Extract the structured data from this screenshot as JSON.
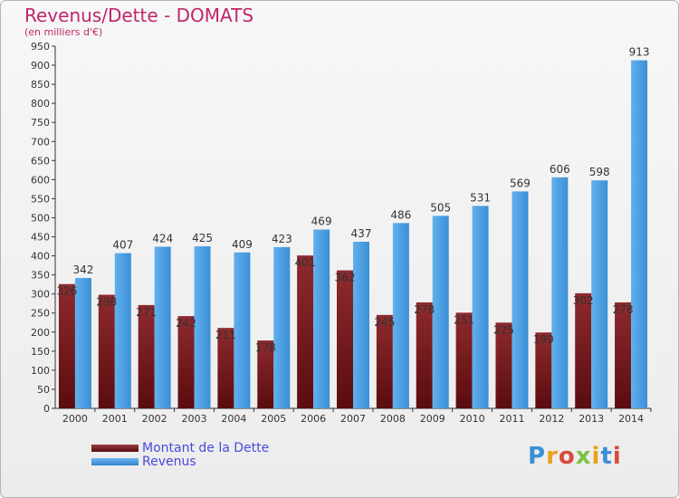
{
  "header": {
    "title": "Revenus/Dette - DOMATS",
    "subtitle": "(en milliers d'€)"
  },
  "legend": {
    "debt_label": "Montant de la Dette",
    "revenue_label": "Revenus"
  },
  "logo": {
    "text": "Proxiti"
  },
  "colors": {
    "title": "#c0266b",
    "debt": "#7a1c20",
    "revenue": "#4da3e6",
    "legend_text": "#4a4adc"
  },
  "chart_data": {
    "type": "bar",
    "title": "Revenus/Dette - DOMATS",
    "subtitle": "(en milliers d'€)",
    "categories": [
      "2000",
      "2001",
      "2002",
      "2003",
      "2004",
      "2005",
      "2006",
      "2007",
      "2008",
      "2009",
      "2010",
      "2011",
      "2012",
      "2013",
      "2014"
    ],
    "series": [
      {
        "name": "Montant de la Dette",
        "values": [
          326,
          298,
          271,
          242,
          211,
          178,
          401,
          362,
          245,
          278,
          251,
          225,
          199,
          302,
          278
        ]
      },
      {
        "name": "Revenus",
        "values": [
          342,
          407,
          424,
          425,
          409,
          423,
          469,
          437,
          486,
          505,
          531,
          569,
          606,
          598,
          913
        ]
      }
    ],
    "ylim": [
      0,
      950
    ],
    "yticks": [
      0,
      50,
      100,
      150,
      200,
      250,
      300,
      350,
      400,
      450,
      500,
      550,
      600,
      650,
      700,
      750,
      800,
      850,
      900,
      950
    ],
    "grid": false,
    "legend_position": "bottom-left"
  }
}
